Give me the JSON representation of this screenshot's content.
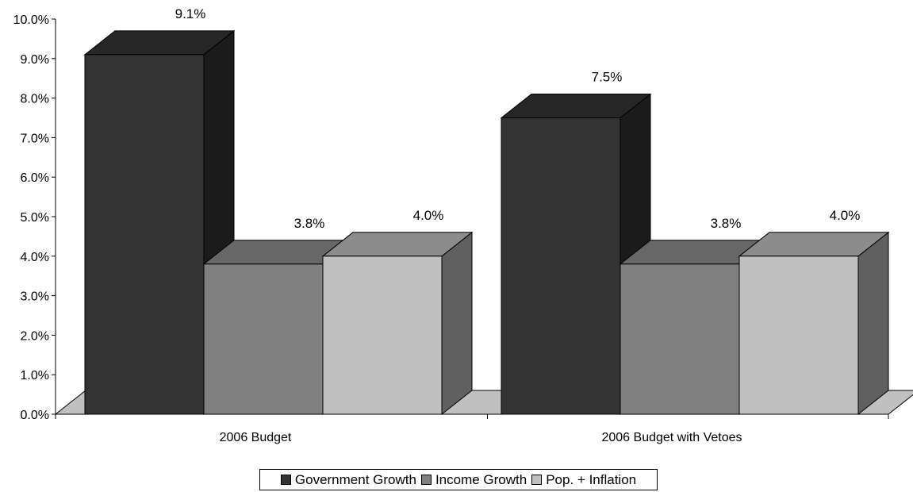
{
  "chart_data": {
    "type": "bar",
    "categories": [
      "2006 Budget",
      "2006 Budget with Vetoes"
    ],
    "series": [
      {
        "name": "Government Growth",
        "values": [
          9.1,
          7.5
        ],
        "labels": [
          "9.1%",
          "7.5%"
        ],
        "color": "#333333",
        "side_color": "#1b1b1b",
        "top_color": "#262626"
      },
      {
        "name": "Income Growth",
        "values": [
          3.8,
          3.8
        ],
        "labels": [
          "3.8%",
          "3.8%"
        ],
        "color": "#808080",
        "side_color": "#5a5a5a",
        "top_color": "#676767"
      },
      {
        "name": "Pop. + Inflation",
        "values": [
          4.0,
          4.0
        ],
        "labels": [
          "4.0%",
          "4.0%"
        ],
        "color": "#c0c0c0",
        "side_color": "#606060",
        "top_color": "#8c8c8c"
      }
    ],
    "y_ticks": [
      "0.0%",
      "1.0%",
      "2.0%",
      "3.0%",
      "4.0%",
      "5.0%",
      "6.0%",
      "7.0%",
      "8.0%",
      "9.0%",
      "10.0%"
    ],
    "ylim": [
      0,
      10
    ],
    "legend_position": "bottom",
    "three_d": true
  },
  "legend": {
    "items": [
      "Government Growth",
      "Income Growth",
      "Pop. + Inflation"
    ]
  }
}
